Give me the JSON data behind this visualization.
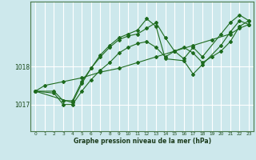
{
  "title": "Graphe pression niveau de la mer (hPa)",
  "bg_color": "#cde8ec",
  "grid_color": "#ffffff",
  "line_color": "#1e6b1e",
  "xlim": [
    -0.5,
    23.5
  ],
  "ylim": [
    1016.3,
    1019.7
  ],
  "yticks": [
    1017,
    1018
  ],
  "xticks": [
    0,
    1,
    2,
    3,
    4,
    5,
    6,
    7,
    8,
    9,
    10,
    11,
    12,
    13,
    14,
    15,
    16,
    17,
    18,
    19,
    20,
    21,
    22,
    23
  ],
  "series": [
    {
      "x": [
        0,
        1,
        3,
        5,
        7,
        9,
        11,
        13,
        15,
        17,
        19,
        21,
        22,
        23
      ],
      "y": [
        1017.35,
        1017.5,
        1017.6,
        1017.7,
        1017.85,
        1017.95,
        1018.1,
        1018.25,
        1018.4,
        1018.55,
        1018.7,
        1018.85,
        1019.0,
        1019.1
      ]
    },
    {
      "x": [
        0,
        2,
        3,
        4,
        5,
        6,
        7,
        8,
        9,
        10,
        11,
        12,
        13,
        14,
        15,
        16,
        17,
        18,
        20,
        21,
        22,
        23
      ],
      "y": [
        1017.35,
        1017.35,
        1017.1,
        1017.1,
        1017.6,
        1017.95,
        1018.25,
        1018.5,
        1018.7,
        1018.8,
        1018.85,
        1019.0,
        1019.15,
        1018.75,
        1018.4,
        1018.2,
        1018.5,
        1018.25,
        1018.85,
        1019.15,
        1019.35,
        1019.2
      ]
    },
    {
      "x": [
        0,
        4,
        5,
        6,
        7,
        8,
        9,
        10,
        11,
        12,
        13,
        14,
        16,
        17,
        18,
        20,
        21,
        22,
        23
      ],
      "y": [
        1017.35,
        1017.05,
        1017.55,
        1017.95,
        1018.3,
        1018.55,
        1018.75,
        1018.85,
        1018.95,
        1019.25,
        1019.05,
        1018.2,
        1018.15,
        1017.8,
        1018.05,
        1018.55,
        1018.9,
        1019.2,
        1019.1
      ]
    },
    {
      "x": [
        0,
        2,
        3,
        4,
        5,
        6,
        7,
        8,
        9,
        10,
        11,
        12,
        13,
        14,
        15,
        16,
        17,
        18,
        19,
        20,
        21,
        22,
        23
      ],
      "y": [
        1017.35,
        1017.3,
        1017.0,
        1017.0,
        1017.35,
        1017.65,
        1017.9,
        1018.1,
        1018.35,
        1018.5,
        1018.6,
        1018.65,
        1018.5,
        1018.25,
        1018.4,
        1018.5,
        1018.35,
        1018.1,
        1018.25,
        1018.4,
        1018.65,
        1019.05,
        1019.2
      ]
    }
  ]
}
